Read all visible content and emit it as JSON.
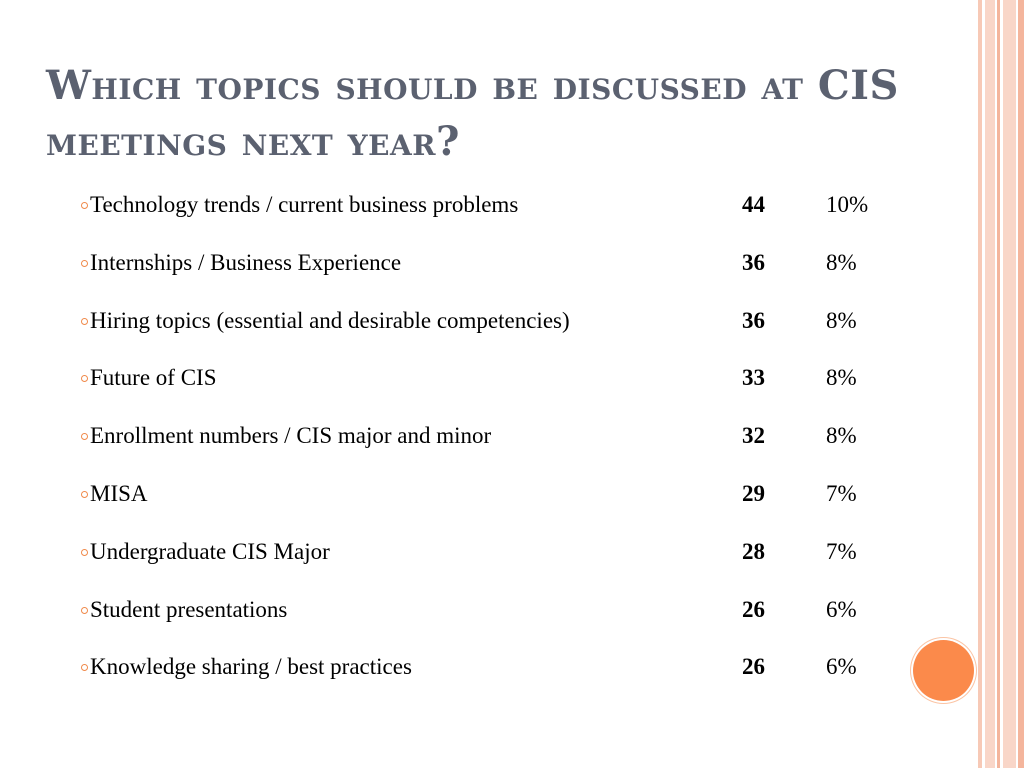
{
  "slide": {
    "title": "Which topics should be discussed at CIS meetings next year?",
    "accent_color": "#f08a4b",
    "title_color": "#5b6170",
    "topics": [
      {
        "topic": "Technology trends / current business problems",
        "count": "44",
        "percent": "10%"
      },
      {
        "topic": "Internships / Business Experience",
        "count": "36",
        "percent": "8%"
      },
      {
        "topic": "Hiring topics (essential and desirable competencies)",
        "count": "36",
        "percent": "8%"
      },
      {
        "topic": "Future of CIS",
        "count": "33",
        "percent": "8%"
      },
      {
        "topic": "Enrollment numbers / CIS major and minor",
        "count": "32",
        "percent": "8%"
      },
      {
        "topic": "MISA",
        "count": "29",
        "percent": "7%"
      },
      {
        "topic": "Undergraduate CIS Major",
        "count": "28",
        "percent": "7%"
      },
      {
        "topic": "Student presentations",
        "count": "26",
        "percent": "6%"
      },
      {
        "topic": "Knowledge sharing / best practices",
        "count": "26",
        "percent": "6%"
      }
    ]
  }
}
